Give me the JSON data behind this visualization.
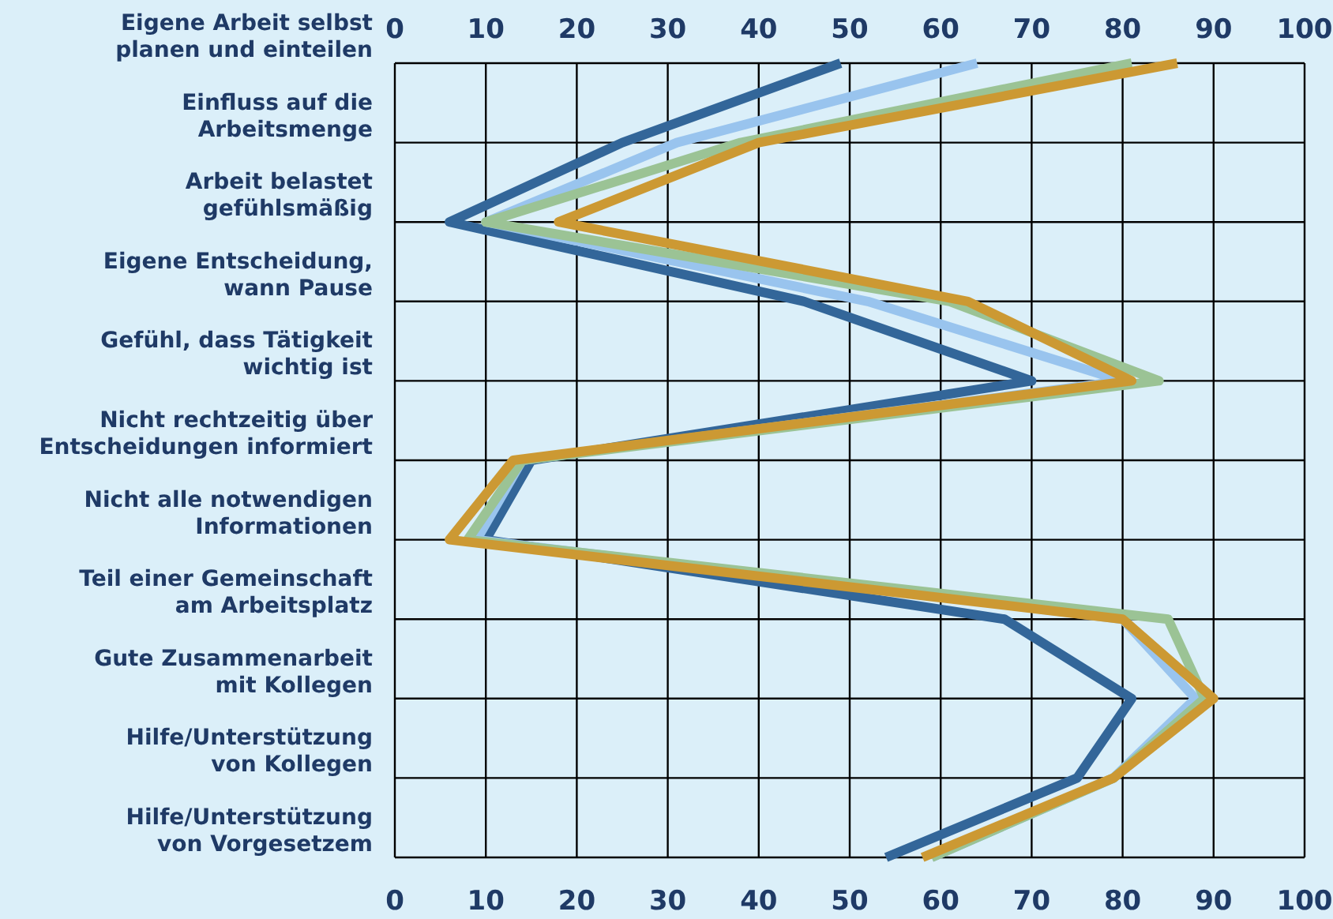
{
  "chart_data": {
    "type": "line",
    "orientation": "horizontal",
    "categories": [
      "Eigene Arbeit selbst\nplanen und einteilen",
      "Einfluss auf die\nArbeitsmenge",
      "Arbeit belastet\ngefühlsmäßig",
      "Eigene Entscheidung,\nwann Pause",
      "Gefühl, dass Tätigkeit\nwichtig ist",
      "Nicht rechtzeitig über\nEntscheidungen informiert",
      "Nicht alle notwendigen\nInformationen",
      "Teil einer Gemeinschaft\nam Arbeitsplatz",
      "Gute Zusammenarbeit\nmit Kollegen",
      "Hilfe/Unterstützung\nvon Kollegen",
      "Hilfe/Unterstützung\nvon Vorgesetzem"
    ],
    "series": [
      {
        "color": "#336699",
        "values": [
          49,
          25,
          6,
          45,
          70,
          15,
          10,
          67,
          81,
          75,
          54
        ]
      },
      {
        "color": "#99c4ee",
        "values": [
          64,
          31,
          10,
          52,
          80,
          14,
          9,
          80,
          88,
          79,
          59
        ]
      },
      {
        "color": "#9bc395",
        "values": [
          81,
          38,
          10,
          61,
          84,
          14,
          8,
          85,
          89,
          79,
          59
        ]
      },
      {
        "color": "#cc9933",
        "values": [
          86,
          40,
          18,
          63,
          81,
          13,
          6,
          80,
          90,
          79,
          58
        ]
      }
    ],
    "xlim": [
      0,
      100
    ],
    "xticks": [
      0,
      10,
      20,
      30,
      40,
      50,
      60,
      70,
      80,
      90,
      100
    ],
    "x2lim": [
      0,
      100
    ],
    "x2ticks": [
      0,
      10,
      20,
      30,
      40,
      50,
      60,
      70,
      80,
      90,
      100
    ],
    "grid": true
  }
}
